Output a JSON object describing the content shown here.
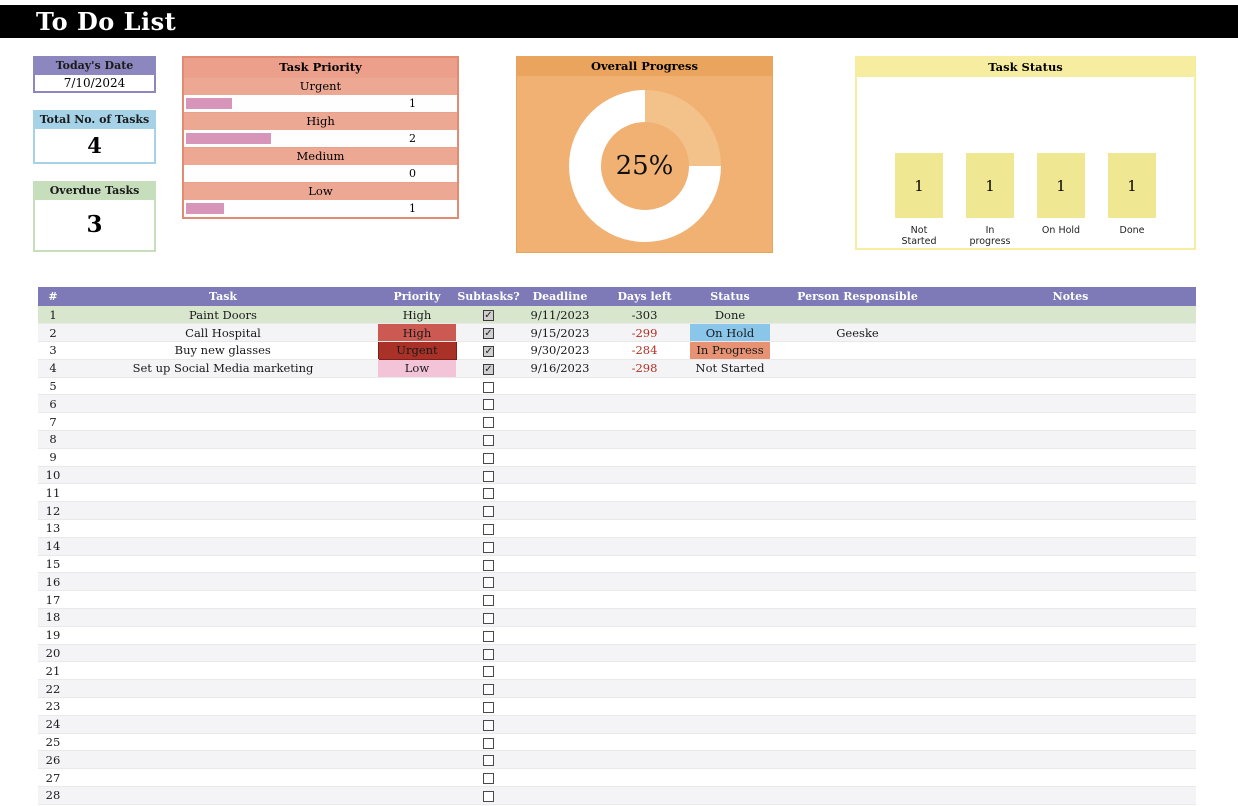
{
  "app": {
    "title": "To Do List"
  },
  "cards": {
    "today": {
      "label": "Today's Date",
      "value": "7/10/2024"
    },
    "total": {
      "label": "Total No. of Tasks",
      "value": "4"
    },
    "overdue": {
      "label": "Overdue Tasks",
      "value": "3"
    }
  },
  "priority_panel": {
    "title": "Task Priority",
    "items": [
      {
        "label": "Urgent",
        "count": "1",
        "bar_pct": 17
      },
      {
        "label": "High",
        "count": "2",
        "bar_pct": 31
      },
      {
        "label": "Medium",
        "count": "0",
        "bar_pct": 0
      },
      {
        "label": "Low",
        "count": "1",
        "bar_pct": 14
      }
    ],
    "bar_color": "#d795ba"
  },
  "progress_panel": {
    "title": "Overall Progress",
    "percent": 25,
    "wedge_color": "#f3c28b",
    "ring_color": "#ffffff"
  },
  "status_panel": {
    "title": "Task Status",
    "items": [
      {
        "label": "Not Started",
        "count": "1"
      },
      {
        "label": "In progress",
        "count": "1"
      },
      {
        "label": "On Hold",
        "count": "1"
      },
      {
        "label": "Done",
        "count": "1"
      }
    ]
  },
  "table": {
    "headers": [
      "#",
      "Task",
      "Priority",
      "Subtasks?",
      "Deadline",
      "Days left",
      "Status",
      "Person Responsible",
      "Notes"
    ],
    "rows": [
      {
        "num": "1",
        "task": "Paint Doors",
        "priority": "High",
        "priority_class": "none",
        "subtask_checked": true,
        "deadline": "9/11/2023",
        "days_left": "-303",
        "days_red": false,
        "status": "Done",
        "status_class": "none",
        "person": "",
        "notes": "",
        "row_class": "done"
      },
      {
        "num": "2",
        "task": "Call Hospital",
        "priority": "High",
        "priority_class": "high",
        "subtask_checked": true,
        "deadline": "9/15/2023",
        "days_left": "-299",
        "days_red": true,
        "status": "On Hold",
        "status_class": "onhold",
        "person": "Geeske",
        "notes": "",
        "row_class": ""
      },
      {
        "num": "3",
        "task": "Buy new glasses",
        "priority": "Urgent",
        "priority_class": "urgent",
        "subtask_checked": true,
        "deadline": "9/30/2023",
        "days_left": "-284",
        "days_red": true,
        "status": "In Progress",
        "status_class": "inprogress",
        "person": "",
        "notes": "",
        "row_class": ""
      },
      {
        "num": "4",
        "task": "Set up Social Media marketing",
        "priority": "Low",
        "priority_class": "low",
        "subtask_checked": true,
        "deadline": "9/16/2023",
        "days_left": "-298",
        "days_red": true,
        "status": "Not Started",
        "status_class": "none",
        "person": "",
        "notes": "",
        "row_class": ""
      }
    ],
    "empty_rows": {
      "start": 5,
      "end": 29
    }
  },
  "colors": {
    "header_purple": "#7e7ab7",
    "done_row_green": "#d8e6cd",
    "priority_high": "#cd5a52",
    "priority_urgent": "#a93127",
    "priority_low": "#f3c3d8",
    "status_on_hold": "#8ac6ea",
    "status_in_progress": "#e79273",
    "overdue_red_text": "#b33024"
  }
}
